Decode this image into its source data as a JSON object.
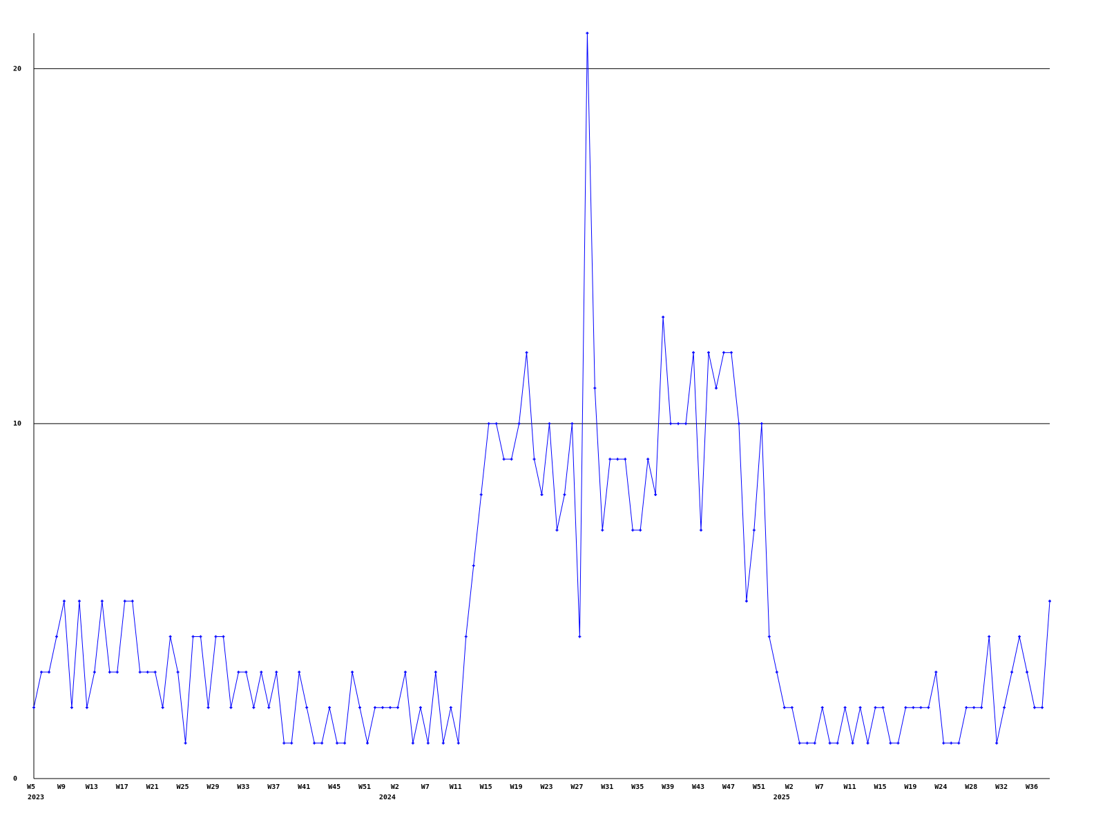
{
  "chart_data": {
    "type": "line",
    "title": "",
    "xlabel": "",
    "ylabel": "",
    "ylim": [
      0,
      21
    ],
    "y_ticks": [
      0,
      10,
      20
    ],
    "grid": "horizontal lines at 10 and 20",
    "line_color": "#0000ff",
    "x_tick_labels": [
      {
        "index": 0,
        "label": "W5"
      },
      {
        "index": 4,
        "label": "W9"
      },
      {
        "index": 8,
        "label": "W13"
      },
      {
        "index": 12,
        "label": "W17"
      },
      {
        "index": 16,
        "label": "W21"
      },
      {
        "index": 20,
        "label": "W25"
      },
      {
        "index": 24,
        "label": "W29"
      },
      {
        "index": 28,
        "label": "W33"
      },
      {
        "index": 32,
        "label": "W37"
      },
      {
        "index": 36,
        "label": "W41"
      },
      {
        "index": 40,
        "label": "W45"
      },
      {
        "index": 44,
        "label": "W51"
      },
      {
        "index": 48,
        "label": "W2"
      },
      {
        "index": 52,
        "label": "W7"
      },
      {
        "index": 56,
        "label": "W11"
      },
      {
        "index": 60,
        "label": "W15"
      },
      {
        "index": 64,
        "label": "W19"
      },
      {
        "index": 68,
        "label": "W23"
      },
      {
        "index": 72,
        "label": "W27"
      },
      {
        "index": 76,
        "label": "W31"
      },
      {
        "index": 80,
        "label": "W35"
      },
      {
        "index": 84,
        "label": "W39"
      },
      {
        "index": 88,
        "label": "W43"
      },
      {
        "index": 92,
        "label": "W47"
      },
      {
        "index": 96,
        "label": "W51"
      },
      {
        "index": 100,
        "label": "W2"
      },
      {
        "index": 104,
        "label": "W7"
      },
      {
        "index": 108,
        "label": "W11"
      },
      {
        "index": 112,
        "label": "W15"
      },
      {
        "index": 116,
        "label": "W19"
      },
      {
        "index": 120,
        "label": "W24"
      },
      {
        "index": 124,
        "label": "W28"
      },
      {
        "index": 128,
        "label": "W32"
      },
      {
        "index": 132,
        "label": "W36"
      }
    ],
    "year_labels": [
      {
        "index": 0,
        "label": "2023"
      },
      {
        "index": 48,
        "label": "2024"
      },
      {
        "index": 100,
        "label": "2025"
      }
    ],
    "values": [
      2,
      3,
      3,
      4,
      5,
      2,
      5,
      2,
      3,
      5,
      3,
      3,
      5,
      5,
      3,
      3,
      3,
      2,
      4,
      3,
      1,
      4,
      4,
      2,
      4,
      4,
      2,
      3,
      3,
      2,
      3,
      2,
      3,
      1,
      1,
      3,
      2,
      1,
      1,
      2,
      1,
      1,
      3,
      2,
      1,
      2,
      2,
      2,
      2,
      3,
      1,
      2,
      1,
      3,
      1,
      2,
      1,
      4,
      6,
      8,
      10,
      10,
      9,
      9,
      10,
      12,
      9,
      8,
      10,
      7,
      8,
      10,
      4,
      21,
      11,
      7,
      9,
      9,
      9,
      7,
      7,
      9,
      8,
      13,
      10,
      10,
      10,
      12,
      7,
      12,
      11,
      12,
      12,
      10,
      5,
      7,
      10,
      4,
      3,
      2,
      2,
      1,
      1,
      1,
      2,
      1,
      1,
      2,
      1,
      2,
      1,
      2,
      2,
      1,
      1,
      2,
      2,
      2,
      2,
      3,
      1,
      1,
      1,
      2,
      2,
      2,
      4,
      1,
      2,
      3,
      4,
      3,
      2,
      2,
      5
    ]
  }
}
